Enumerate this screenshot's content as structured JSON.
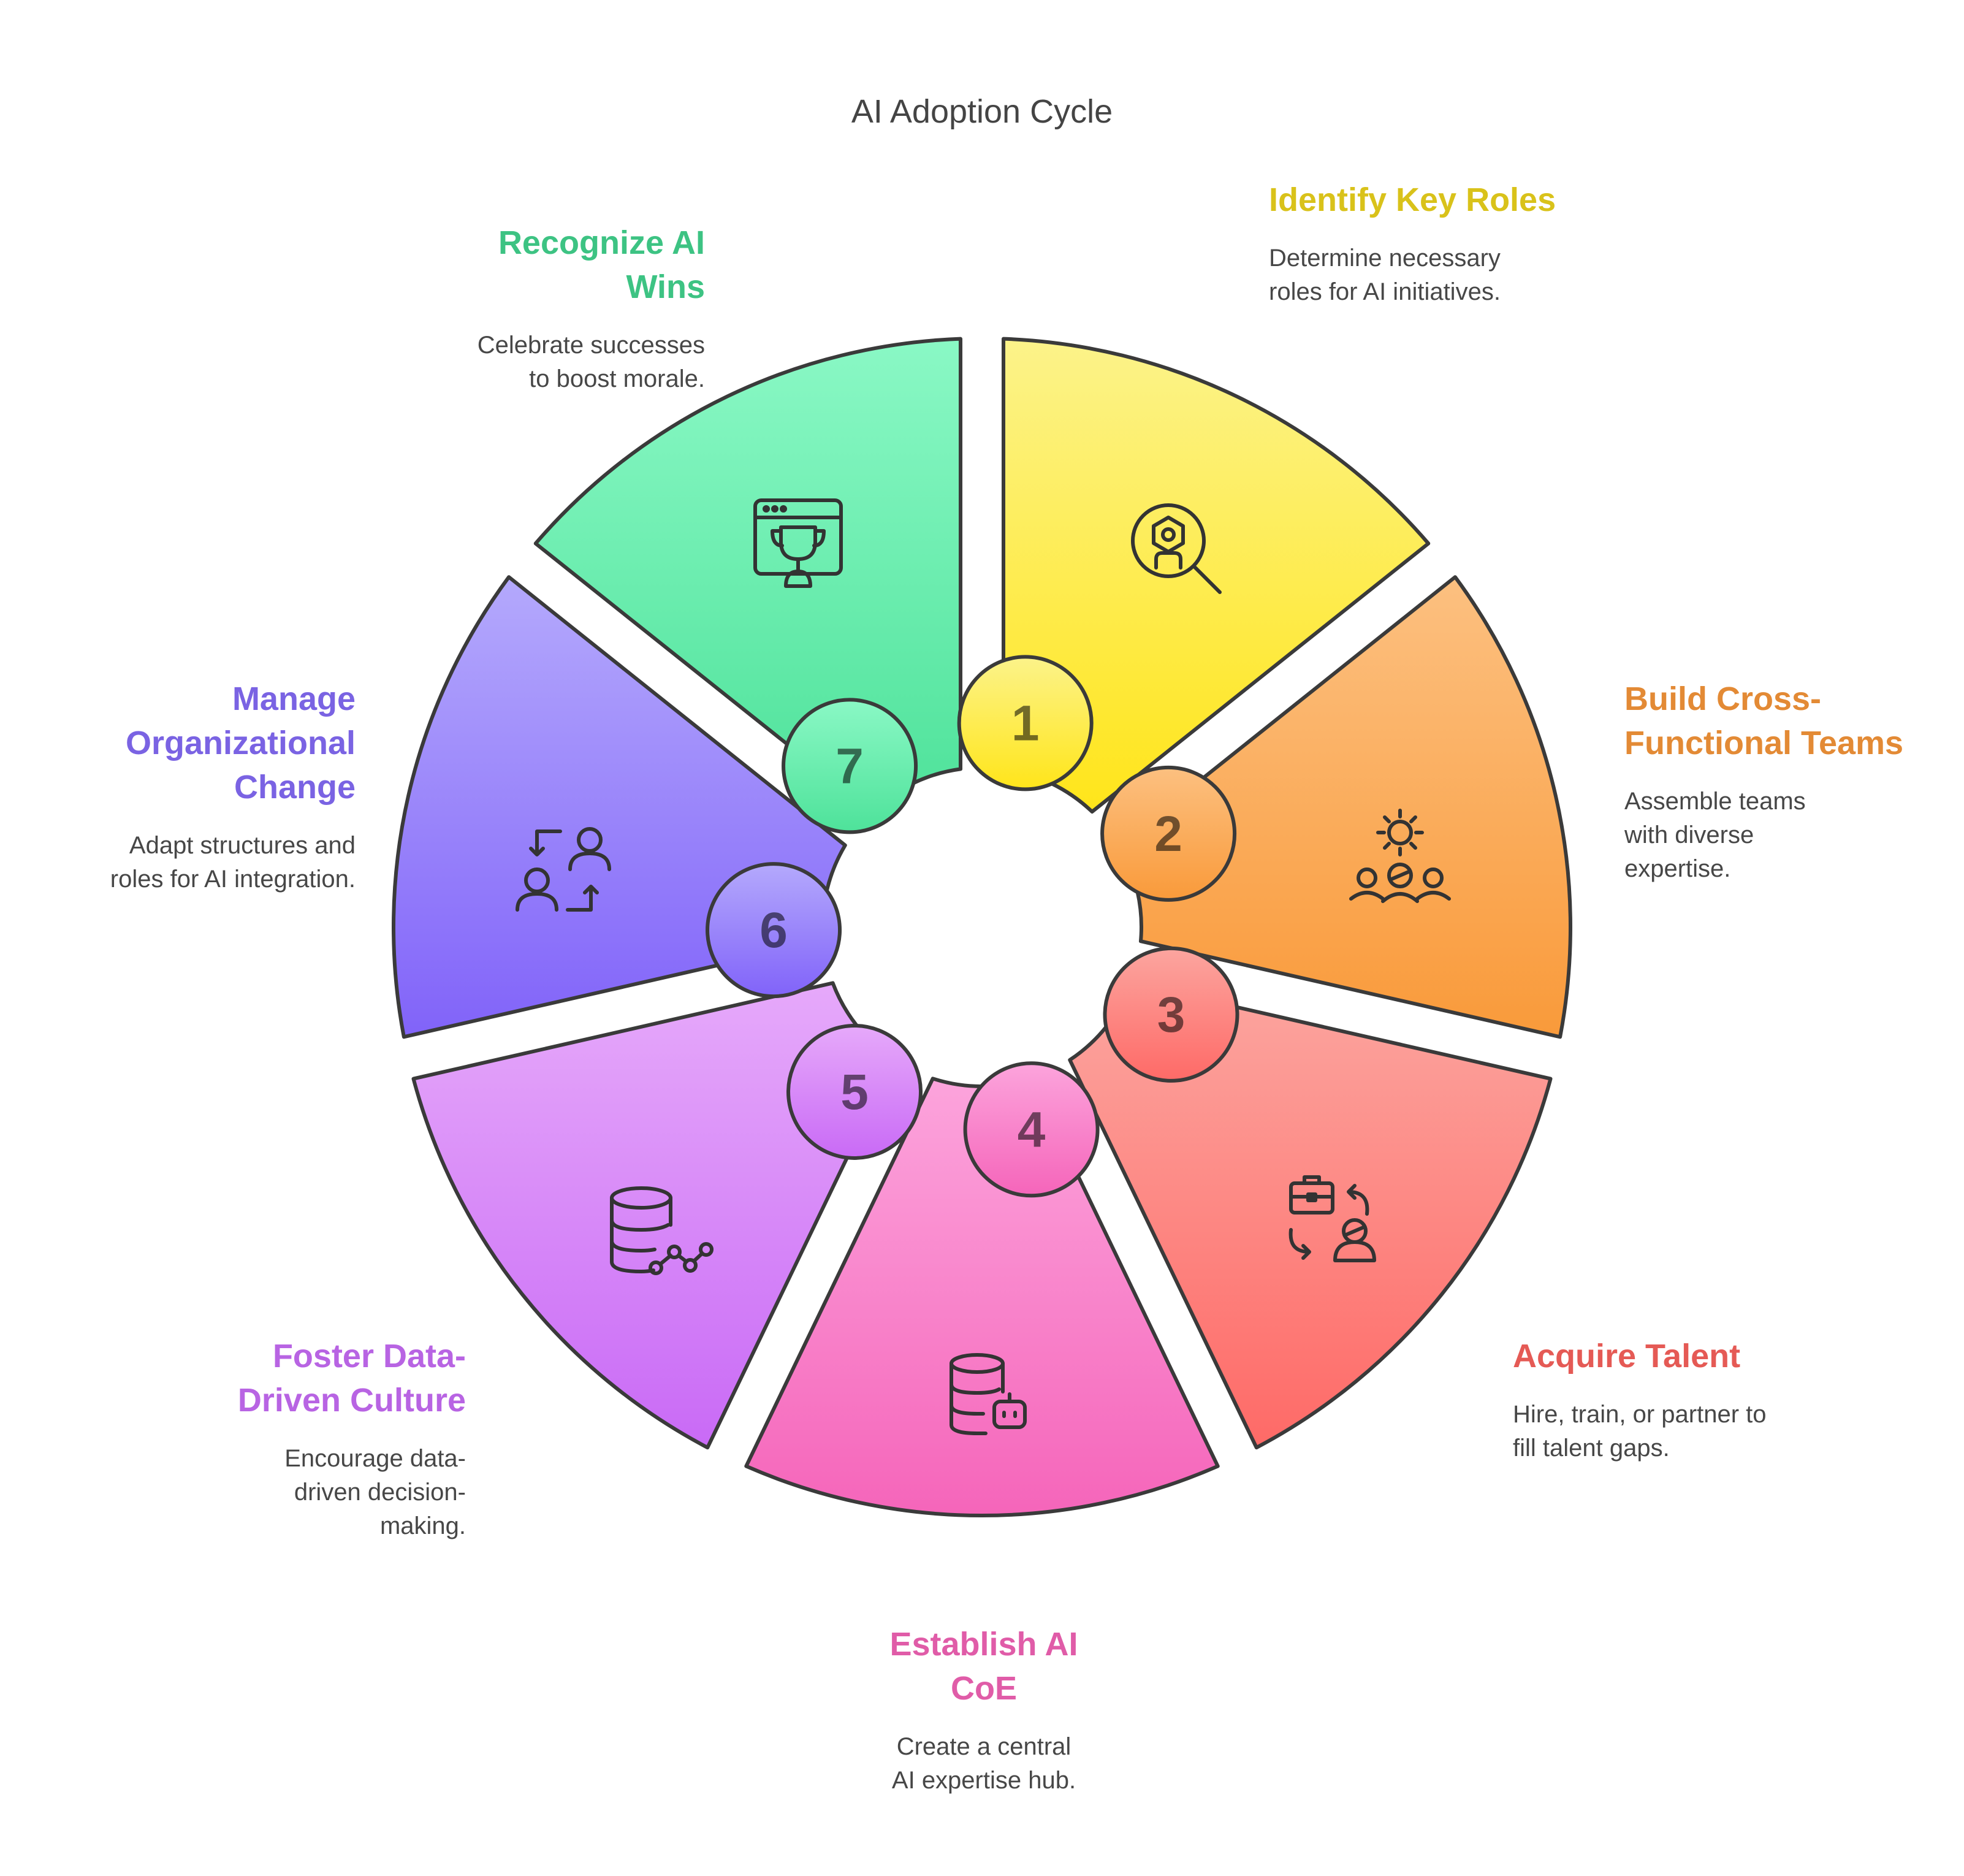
{
  "title": "AI Adoption Cycle",
  "steps": [
    {
      "number": "1",
      "title": "Identify Key Roles",
      "description": "Determine necessary roles for AI initiatives.",
      "color": "#D9C21A",
      "icon": "role-search-icon"
    },
    {
      "number": "2",
      "title": "Build Cross-Functional Teams",
      "description": "Assemble teams with diverse expertise.",
      "color": "#E38A35",
      "icon": "team-gear-icon"
    },
    {
      "number": "3",
      "title": "Acquire Talent",
      "description": "Hire, train, or partner to fill talent gaps.",
      "color": "#E55A55",
      "icon": "talent-exchange-icon"
    },
    {
      "number": "4",
      "title": "Establish AI CoE",
      "description": "Create a central AI expertise hub.",
      "color": "#E05CA8",
      "icon": "database-robot-icon"
    },
    {
      "number": "5",
      "title": "Foster Data-Driven Culture",
      "description": "Encourage data-driven decision-making.",
      "color": "#B864E3",
      "icon": "database-chart-icon"
    },
    {
      "number": "6",
      "title": "Manage Organizational Change",
      "description": "Adapt structures and roles for AI integration.",
      "color": "#7A63E3",
      "icon": "people-swap-icon"
    },
    {
      "number": "7",
      "title": "Recognize AI Wins",
      "description": "Celebrate successes to boost morale.",
      "color": "#3DC383",
      "icon": "trophy-window-icon"
    }
  ]
}
